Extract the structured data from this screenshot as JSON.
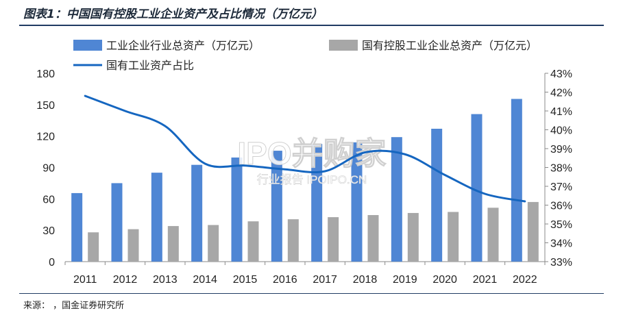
{
  "figure": {
    "title": "图表1：中国国有控股工业企业资产及占比情况（万亿元）",
    "source": "来源：    ，国金证券研究所",
    "watermark_main": "IPO并购家",
    "watermark_sub": "行业报告 IPOIPO.CN"
  },
  "chart_data": {
    "type": "bar",
    "categories": [
      "2011",
      "2012",
      "2013",
      "2014",
      "2015",
      "2016",
      "2017",
      "2018",
      "2019",
      "2020",
      "2021",
      "2022"
    ],
    "series": [
      {
        "name": "工业企业行业总资产（万亿元）",
        "type": "bar",
        "axis": "left",
        "color": "#4f86d4",
        "values": [
          65.5,
          75.0,
          85.0,
          92.5,
          99.5,
          106.0,
          112.5,
          114.0,
          119.0,
          127.0,
          141.0,
          155.5
        ]
      },
      {
        "name": "国有控股工业企业总资产（万亿元）",
        "type": "bar",
        "axis": "left",
        "color": "#a7a7a7",
        "values": [
          28.0,
          31.0,
          34.0,
          35.0,
          38.5,
          40.5,
          42.5,
          44.5,
          46.5,
          47.5,
          51.5,
          57.0
        ]
      },
      {
        "name": "国有工业资产占比",
        "type": "line",
        "axis": "right",
        "color": "#1566c0",
        "values": [
          41.8,
          41.0,
          40.2,
          38.2,
          38.1,
          37.9,
          37.8,
          38.8,
          38.7,
          37.6,
          36.6,
          36.2
        ]
      }
    ],
    "y_left": {
      "min": 0,
      "max": 180,
      "ticks": [
        0,
        30,
        60,
        90,
        120,
        150,
        180
      ]
    },
    "y_right": {
      "min": 33,
      "max": 43,
      "ticks": [
        "33%",
        "34%",
        "35%",
        "36%",
        "37%",
        "38%",
        "39%",
        "40%",
        "41%",
        "42%",
        "43%"
      ]
    },
    "legend_position": "top",
    "grid": false
  }
}
